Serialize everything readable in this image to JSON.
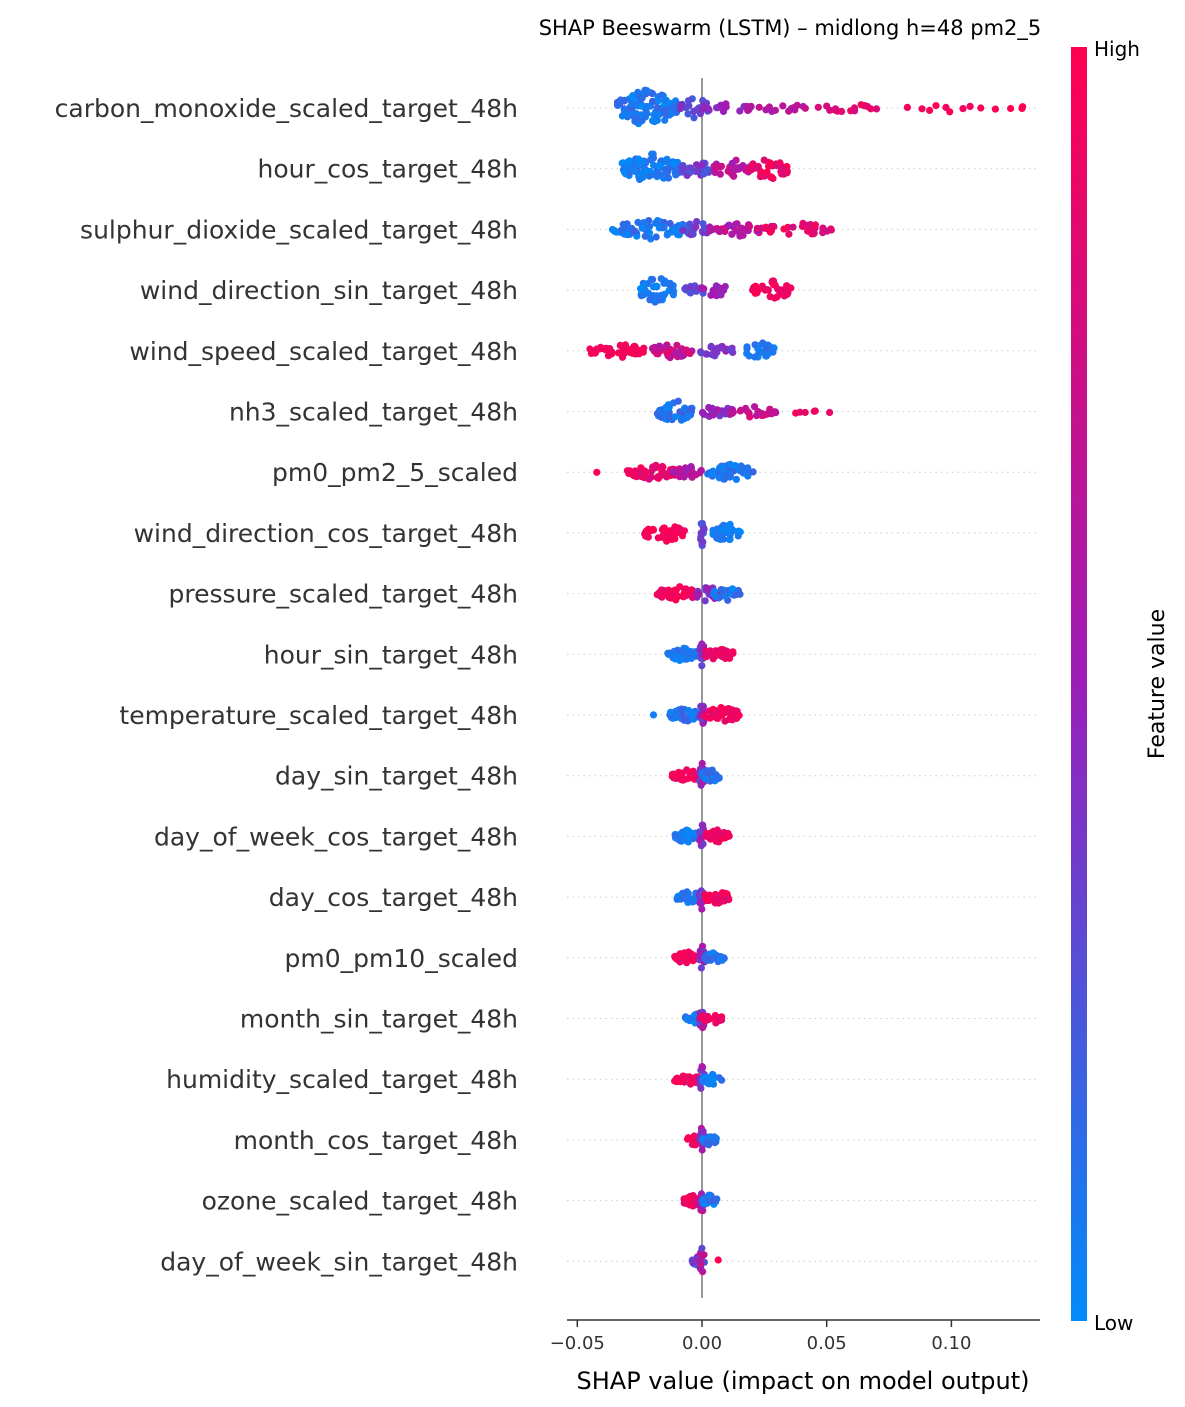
{
  "chart_data": {
    "type": "scatter",
    "subtype": "shap-beeswarm",
    "title": "SHAP Beeswarm (LSTM) – midlong h=48 pm2_5",
    "xlabel": "SHAP value (impact on model output)",
    "xlim": [
      -0.055,
      0.136
    ],
    "xticks": [
      -0.05,
      0.0,
      0.05,
      0.1
    ],
    "xtick_labels": [
      "−0.05",
      "0.00",
      "0.05",
      "0.10"
    ],
    "grid": false,
    "colorbar": {
      "label": "Feature value",
      "high_label": "High",
      "low_label": "Low",
      "low_color": "#008bfb",
      "mid_color": "#9b1eb8",
      "high_color": "#ff0051"
    },
    "features": [
      {
        "name": "carbon_monoxide_scaled_target_48h",
        "clusters": [
          {
            "c": -0.022,
            "w": 0.012,
            "n": 120,
            "v": [
              0.0,
              0.18
            ],
            "h": 1.0
          },
          {
            "c": -0.003,
            "w": 0.006,
            "n": 20,
            "v": [
              0.2,
              0.45
            ],
            "h": 0.6
          },
          {
            "c": 0.01,
            "w": 0.01,
            "n": 14,
            "v": [
              0.4,
              0.6
            ],
            "h": 0.3
          },
          {
            "c": 0.03,
            "w": 0.012,
            "n": 18,
            "v": [
              0.55,
              0.75
            ],
            "h": 0.25
          },
          {
            "c": 0.058,
            "w": 0.012,
            "n": 16,
            "v": [
              0.75,
              0.95
            ],
            "h": 0.25
          },
          {
            "c": 0.1,
            "w": 0.018,
            "n": 10,
            "v": [
              0.9,
              1.0
            ],
            "h": 0.2
          },
          {
            "c": 0.126,
            "w": 0.003,
            "n": 3,
            "v": [
              1.0,
              1.0
            ],
            "h": 0.15
          }
        ]
      },
      {
        "name": "hour_cos_target_48h",
        "clusters": [
          {
            "c": -0.02,
            "w": 0.012,
            "n": 90,
            "v": [
              0.0,
              0.15
            ],
            "h": 0.8
          },
          {
            "c": -0.003,
            "w": 0.006,
            "n": 25,
            "v": [
              0.2,
              0.45
            ],
            "h": 0.5
          },
          {
            "c": 0.012,
            "w": 0.008,
            "n": 30,
            "v": [
              0.5,
              0.8
            ],
            "h": 0.5
          },
          {
            "c": 0.027,
            "w": 0.008,
            "n": 40,
            "v": [
              0.8,
              1.0
            ],
            "h": 0.6
          }
        ]
      },
      {
        "name": "sulphur_dioxide_scaled_target_48h",
        "clusters": [
          {
            "c": -0.02,
            "w": 0.016,
            "n": 70,
            "v": [
              0.0,
              0.2
            ],
            "h": 0.5
          },
          {
            "c": -0.002,
            "w": 0.006,
            "n": 20,
            "v": [
              0.2,
              0.45
            ],
            "h": 0.4
          },
          {
            "c": 0.015,
            "w": 0.012,
            "n": 35,
            "v": [
              0.5,
              0.8
            ],
            "h": 0.35
          },
          {
            "c": 0.038,
            "w": 0.014,
            "n": 30,
            "v": [
              0.75,
              1.0
            ],
            "h": 0.35
          }
        ]
      },
      {
        "name": "wind_direction_sin_target_48h",
        "clusters": [
          {
            "c": -0.018,
            "w": 0.007,
            "n": 45,
            "v": [
              0.0,
              0.15
            ],
            "h": 0.7
          },
          {
            "c": -0.003,
            "w": 0.004,
            "n": 12,
            "v": [
              0.2,
              0.45
            ],
            "h": 0.4
          },
          {
            "c": 0.005,
            "w": 0.006,
            "n": 15,
            "v": [
              0.4,
              0.6
            ],
            "h": 0.35
          },
          {
            "c": 0.028,
            "w": 0.008,
            "n": 35,
            "v": [
              0.85,
              1.0
            ],
            "h": 0.5
          }
        ]
      },
      {
        "name": "wind_speed_scaled_target_48h",
        "clusters": [
          {
            "c": -0.033,
            "w": 0.012,
            "n": 45,
            "v": [
              0.9,
              1.0
            ],
            "h": 0.35
          },
          {
            "c": -0.012,
            "w": 0.008,
            "n": 35,
            "v": [
              0.55,
              0.85
            ],
            "h": 0.4
          },
          {
            "c": 0.006,
            "w": 0.007,
            "n": 20,
            "v": [
              0.3,
              0.5
            ],
            "h": 0.3
          },
          {
            "c": 0.023,
            "w": 0.006,
            "n": 25,
            "v": [
              0.0,
              0.15
            ],
            "h": 0.5
          }
        ]
      },
      {
        "name": "nh3_scaled_target_48h",
        "clusters": [
          {
            "c": -0.011,
            "w": 0.007,
            "n": 45,
            "v": [
              0.0,
              0.2
            ],
            "h": 0.6
          },
          {
            "c": 0.006,
            "w": 0.007,
            "n": 25,
            "v": [
              0.35,
              0.6
            ],
            "h": 0.35
          },
          {
            "c": 0.02,
            "w": 0.01,
            "n": 25,
            "v": [
              0.6,
              0.85
            ],
            "h": 0.3
          },
          {
            "c": 0.042,
            "w": 0.01,
            "n": 6,
            "v": [
              0.85,
              1.0
            ],
            "h": 0.15
          }
        ]
      },
      {
        "name": "pm0_pm2_5_scaled",
        "clusters": [
          {
            "c": -0.042,
            "w": 0.001,
            "n": 1,
            "v": [
              1.0,
              1.0
            ],
            "h": 0.1
          },
          {
            "c": -0.02,
            "w": 0.01,
            "n": 45,
            "v": [
              0.8,
              1.0
            ],
            "h": 0.4
          },
          {
            "c": -0.006,
            "w": 0.006,
            "n": 25,
            "v": [
              0.5,
              0.75
            ],
            "h": 0.35
          },
          {
            "c": 0.011,
            "w": 0.01,
            "n": 40,
            "v": [
              0.0,
              0.2
            ],
            "h": 0.45
          }
        ]
      },
      {
        "name": "wind_direction_cos_target_48h",
        "clusters": [
          {
            "c": -0.015,
            "w": 0.008,
            "n": 45,
            "v": [
              0.92,
              1.0
            ],
            "h": 0.5
          },
          {
            "c": 0.0,
            "w": 0.001,
            "n": 12,
            "v": [
              0.2,
              0.4
            ],
            "h": 0.7
          },
          {
            "c": 0.01,
            "w": 0.006,
            "n": 40,
            "v": [
              0.0,
              0.12
            ],
            "h": 0.5
          }
        ]
      },
      {
        "name": "pressure_scaled_target_48h",
        "clusters": [
          {
            "c": -0.01,
            "w": 0.008,
            "n": 50,
            "v": [
              0.85,
              1.0
            ],
            "h": 0.4
          },
          {
            "c": 0.002,
            "w": 0.005,
            "n": 25,
            "v": [
              0.35,
              0.65
            ],
            "h": 0.4
          },
          {
            "c": 0.01,
            "w": 0.006,
            "n": 30,
            "v": [
              0.0,
              0.2
            ],
            "h": 0.35
          }
        ]
      },
      {
        "name": "hour_sin_target_48h",
        "clusters": [
          {
            "c": -0.008,
            "w": 0.006,
            "n": 40,
            "v": [
              0.0,
              0.15
            ],
            "h": 0.35
          },
          {
            "c": 0.0,
            "w": 0.001,
            "n": 15,
            "v": [
              0.3,
              0.6
            ],
            "h": 0.7
          },
          {
            "c": 0.007,
            "w": 0.006,
            "n": 35,
            "v": [
              0.85,
              1.0
            ],
            "h": 0.4
          }
        ]
      },
      {
        "name": "temperature_scaled_target_48h",
        "clusters": [
          {
            "c": -0.02,
            "w": 0.001,
            "n": 1,
            "v": [
              0.05,
              0.05
            ],
            "h": 0.1
          },
          {
            "c": -0.007,
            "w": 0.006,
            "n": 35,
            "v": [
              0.0,
              0.2
            ],
            "h": 0.35
          },
          {
            "c": 0.0,
            "w": 0.001,
            "n": 15,
            "v": [
              0.3,
              0.6
            ],
            "h": 0.7
          },
          {
            "c": 0.008,
            "w": 0.007,
            "n": 40,
            "v": [
              0.85,
              1.0
            ],
            "h": 0.45
          }
        ]
      },
      {
        "name": "day_sin_target_48h",
        "clusters": [
          {
            "c": -0.006,
            "w": 0.006,
            "n": 40,
            "v": [
              0.85,
              1.0
            ],
            "h": 0.35
          },
          {
            "c": 0.0,
            "w": 0.001,
            "n": 15,
            "v": [
              0.3,
              0.6
            ],
            "h": 0.7
          },
          {
            "c": 0.004,
            "w": 0.004,
            "n": 30,
            "v": [
              0.0,
              0.2
            ],
            "h": 0.35
          }
        ]
      },
      {
        "name": "day_of_week_cos_target_48h",
        "clusters": [
          {
            "c": -0.006,
            "w": 0.005,
            "n": 40,
            "v": [
              0.0,
              0.15
            ],
            "h": 0.35
          },
          {
            "c": 0.0,
            "w": 0.001,
            "n": 15,
            "v": [
              0.3,
              0.6
            ],
            "h": 0.7
          },
          {
            "c": 0.006,
            "w": 0.005,
            "n": 35,
            "v": [
              0.85,
              1.0
            ],
            "h": 0.35
          }
        ]
      },
      {
        "name": "day_cos_target_48h",
        "clusters": [
          {
            "c": -0.005,
            "w": 0.005,
            "n": 40,
            "v": [
              0.0,
              0.15
            ],
            "h": 0.35
          },
          {
            "c": 0.0,
            "w": 0.001,
            "n": 15,
            "v": [
              0.3,
              0.6
            ],
            "h": 0.7
          },
          {
            "c": 0.006,
            "w": 0.005,
            "n": 40,
            "v": [
              0.85,
              1.0
            ],
            "h": 0.35
          }
        ]
      },
      {
        "name": "pm0_pm10_scaled",
        "clusters": [
          {
            "c": -0.006,
            "w": 0.005,
            "n": 35,
            "v": [
              0.85,
              1.0
            ],
            "h": 0.35
          },
          {
            "c": 0.0,
            "w": 0.001,
            "n": 15,
            "v": [
              0.3,
              0.6
            ],
            "h": 0.7
          },
          {
            "c": 0.005,
            "w": 0.004,
            "n": 30,
            "v": [
              0.0,
              0.2
            ],
            "h": 0.3
          }
        ]
      },
      {
        "name": "month_sin_target_48h",
        "clusters": [
          {
            "c": -0.003,
            "w": 0.004,
            "n": 25,
            "v": [
              0.0,
              0.2
            ],
            "h": 0.3
          },
          {
            "c": 0.0,
            "w": 0.001,
            "n": 15,
            "v": [
              0.3,
              0.7
            ],
            "h": 0.7
          },
          {
            "c": 0.004,
            "w": 0.004,
            "n": 25,
            "v": [
              0.85,
              1.0
            ],
            "h": 0.3
          }
        ]
      },
      {
        "name": "humidity_scaled_target_48h",
        "clusters": [
          {
            "c": -0.006,
            "w": 0.005,
            "n": 35,
            "v": [
              0.85,
              1.0
            ],
            "h": 0.3
          },
          {
            "c": 0.0,
            "w": 0.001,
            "n": 15,
            "v": [
              0.3,
              0.6
            ],
            "h": 0.7
          },
          {
            "c": 0.004,
            "w": 0.004,
            "n": 25,
            "v": [
              0.0,
              0.2
            ],
            "h": 0.3
          }
        ]
      },
      {
        "name": "month_cos_target_48h",
        "clusters": [
          {
            "c": -0.003,
            "w": 0.003,
            "n": 20,
            "v": [
              0.85,
              1.0
            ],
            "h": 0.3
          },
          {
            "c": 0.0,
            "w": 0.001,
            "n": 15,
            "v": [
              0.3,
              0.7
            ],
            "h": 0.7
          },
          {
            "c": 0.003,
            "w": 0.003,
            "n": 20,
            "v": [
              0.0,
              0.2
            ],
            "h": 0.3
          }
        ]
      },
      {
        "name": "ozone_scaled_target_48h",
        "clusters": [
          {
            "c": -0.004,
            "w": 0.004,
            "n": 25,
            "v": [
              0.85,
              1.0
            ],
            "h": 0.3
          },
          {
            "c": 0.0,
            "w": 0.001,
            "n": 15,
            "v": [
              0.3,
              0.7
            ],
            "h": 0.7
          },
          {
            "c": 0.003,
            "w": 0.003,
            "n": 20,
            "v": [
              0.0,
              0.2
            ],
            "h": 0.3
          }
        ]
      },
      {
        "name": "day_of_week_sin_target_48h",
        "clusters": [
          {
            "c": -0.002,
            "w": 0.002,
            "n": 15,
            "v": [
              0.0,
              0.5
            ],
            "h": 0.25
          },
          {
            "c": 0.0,
            "w": 0.001,
            "n": 15,
            "v": [
              0.2,
              0.8
            ],
            "h": 0.7
          },
          {
            "c": 0.007,
            "w": 0.001,
            "n": 1,
            "v": [
              1.0,
              1.0
            ],
            "h": 0.1
          }
        ]
      }
    ]
  }
}
